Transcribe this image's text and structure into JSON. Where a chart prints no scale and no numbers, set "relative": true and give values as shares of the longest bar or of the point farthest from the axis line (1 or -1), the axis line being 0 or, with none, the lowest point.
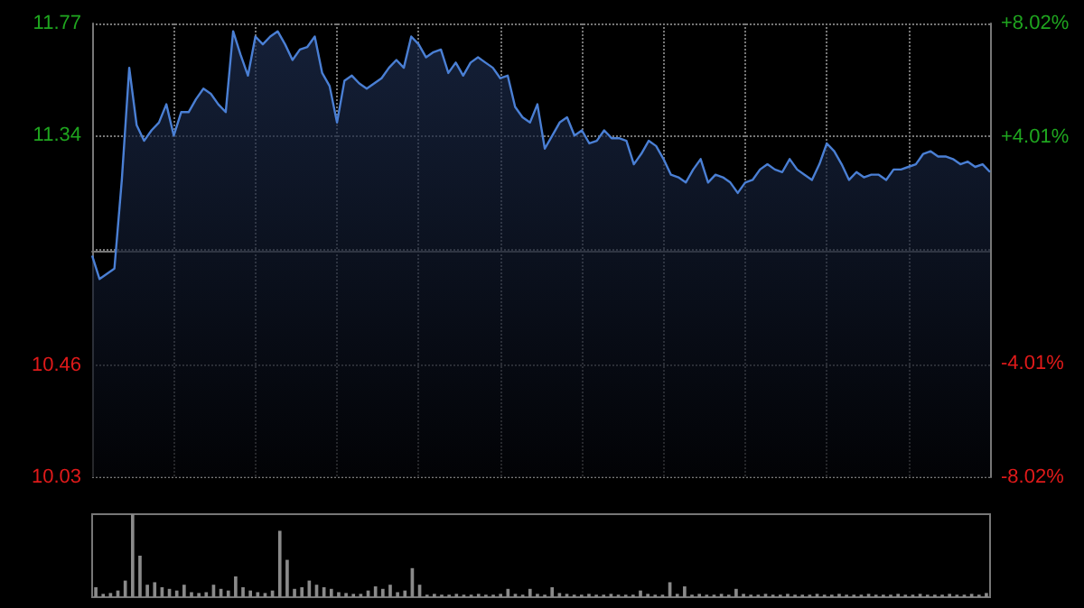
{
  "chart_data": [
    {
      "type": "area",
      "categories": [
        null,
        null,
        null,
        null,
        null,
        null,
        null,
        null,
        null,
        null,
        null,
        null,
        null,
        null,
        null,
        null,
        null,
        null,
        null,
        null,
        null,
        null,
        null,
        null,
        null,
        null,
        null,
        null,
        null,
        null,
        null,
        null,
        null,
        null,
        null,
        null,
        null,
        null,
        null,
        null,
        null,
        null,
        null,
        null,
        null,
        null,
        null,
        null,
        null,
        null,
        null,
        null,
        null,
        null,
        null,
        null,
        null,
        null,
        null,
        null,
        null,
        null,
        null,
        null,
        null,
        null,
        null,
        null,
        null,
        null,
        null,
        null,
        null,
        null,
        null,
        null,
        null,
        null,
        null,
        null,
        null,
        null,
        null,
        null,
        null,
        null,
        null,
        null,
        null,
        null,
        null,
        null,
        null,
        null,
        null,
        null,
        null,
        null,
        null,
        null,
        null,
        null,
        null,
        null,
        null,
        null,
        null,
        null,
        null,
        null,
        null,
        null,
        null,
        null,
        null,
        null,
        null,
        null,
        null,
        null,
        null,
        null
      ],
      "series": [
        {
          "color": "#4a7fd4",
          "values": [
            10.88,
            10.79,
            10.81,
            10.83,
            11.17,
            11.6,
            11.38,
            11.32,
            11.36,
            11.39,
            11.46,
            11.34,
            11.43,
            11.43,
            11.48,
            11.52,
            11.5,
            11.46,
            11.43,
            11.74,
            11.65,
            11.57,
            11.72,
            11.69,
            11.72,
            11.74,
            11.69,
            11.63,
            11.67,
            11.68,
            11.72,
            11.58,
            11.53,
            11.39,
            11.55,
            11.57,
            11.54,
            11.52,
            11.54,
            11.56,
            11.6,
            11.63,
            11.6,
            11.72,
            11.69,
            11.64,
            11.66,
            11.67,
            11.58,
            11.62,
            11.57,
            11.62,
            11.64,
            11.62,
            11.6,
            11.56,
            11.57,
            11.45,
            11.41,
            11.39,
            11.46,
            11.29,
            11.34,
            11.39,
            11.41,
            11.34,
            11.36,
            11.31,
            11.32,
            11.36,
            11.33,
            11.33,
            11.32,
            11.23,
            11.27,
            11.32,
            11.3,
            11.25,
            11.19,
            11.18,
            11.16,
            11.21,
            11.25,
            11.16,
            11.19,
            11.18,
            11.16,
            11.12,
            11.16,
            11.17,
            11.21,
            11.23,
            11.21,
            11.2,
            11.25,
            11.21,
            11.19,
            11.17,
            11.23,
            11.31,
            11.28,
            11.23,
            11.17,
            11.2,
            11.18,
            11.19,
            11.19,
            11.17,
            11.21,
            11.21,
            11.22,
            11.23,
            11.27,
            11.28,
            11.26,
            11.26,
            11.25,
            11.23,
            11.24,
            11.22,
            11.23,
            11.2
          ]
        }
      ],
      "ylim": [
        10.03,
        11.77
      ],
      "yticks": [
        10.03,
        10.46,
        {
          "value": 10.9,
          "label": null
        },
        11.34,
        11.77
      ],
      "y2lim": [
        -8.02,
        8.02
      ],
      "y2ticks": [
        {
          "value": -8.02,
          "label": "-8.02%"
        },
        {
          "value": -4.01,
          "label": "-4.01%"
        },
        {
          "value": 0,
          "label": null
        },
        {
          "value": 4.01,
          "label": "+4.01%"
        },
        {
          "value": 8.02,
          "label": "+8.02%"
        }
      ],
      "grid": true
    },
    {
      "type": "bar",
      "relative": true,
      "color": "#8a8a8a",
      "categories": [
        null,
        null,
        null,
        null,
        null,
        null,
        null,
        null,
        null,
        null,
        null,
        null,
        null,
        null,
        null,
        null,
        null,
        null,
        null,
        null,
        null,
        null,
        null,
        null,
        null,
        null,
        null,
        null,
        null,
        null,
        null,
        null,
        null,
        null,
        null,
        null,
        null,
        null,
        null,
        null,
        null,
        null,
        null,
        null,
        null,
        null,
        null,
        null,
        null,
        null,
        null,
        null,
        null,
        null,
        null,
        null,
        null,
        null,
        null,
        null,
        null,
        null,
        null,
        null,
        null,
        null,
        null,
        null,
        null,
        null,
        null,
        null,
        null,
        null,
        null,
        null,
        null,
        null,
        null,
        null,
        null,
        null,
        null,
        null,
        null,
        null,
        null,
        null,
        null,
        null,
        null,
        null,
        null,
        null,
        null,
        null,
        null,
        null,
        null,
        null,
        null,
        null,
        null,
        null,
        null,
        null,
        null,
        null,
        null,
        null,
        null,
        null,
        null,
        null,
        null,
        null,
        null,
        null,
        null,
        null,
        null,
        null
      ],
      "values": [
        0.12,
        0.04,
        0.05,
        0.08,
        0.2,
        1,
        0.5,
        0.15,
        0.18,
        0.12,
        0.1,
        0.08,
        0.15,
        0.06,
        0.05,
        0.06,
        0.15,
        0.1,
        0.08,
        0.25,
        0.12,
        0.08,
        0.06,
        0.05,
        0.08,
        0.8,
        0.45,
        0.1,
        0.12,
        0.2,
        0.15,
        0.12,
        0.1,
        0.06,
        0.05,
        0.04,
        0.04,
        0.08,
        0.13,
        0.1,
        0.15,
        0.06,
        0.08,
        0.35,
        0.15,
        0.03,
        0.04,
        0.03,
        0.03,
        0.04,
        0.03,
        0.03,
        0.04,
        0.03,
        0.03,
        0.04,
        0.1,
        0.04,
        0.03,
        0.1,
        0.04,
        0.03,
        0.12,
        0.05,
        0.04,
        0.03,
        0.03,
        0.04,
        0.03,
        0.03,
        0.04,
        0.03,
        0.03,
        0.03,
        0.08,
        0.04,
        0.03,
        0.03,
        0.18,
        0.04,
        0.13,
        0.03,
        0.04,
        0.03,
        0.03,
        0.04,
        0.03,
        0.1,
        0.04,
        0.03,
        0.03,
        0.04,
        0.03,
        0.03,
        0.04,
        0.03,
        0.03,
        0.03,
        0.04,
        0.03,
        0.03,
        0.04,
        0.03,
        0.03,
        0.03,
        0.04,
        0.03,
        0.03,
        0.03,
        0.04,
        0.03,
        0.03,
        0.04,
        0.03,
        0.03,
        0.03,
        0.04,
        0.03,
        0.03,
        0.04,
        0.03,
        0.05
      ]
    }
  ]
}
